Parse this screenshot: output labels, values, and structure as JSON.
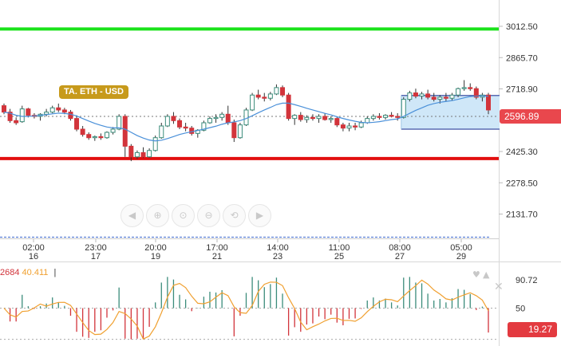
{
  "colors": {
    "bull": "#3b8c7b",
    "bear": "#d2343b",
    "support": "#e20f0f",
    "resistance": "#1be21b",
    "ma": "#4a90d9",
    "range_fill": "#cfe7f8",
    "range_border": "#5b6bb3",
    "label_bg": "#c79a1b",
    "price_tag_bg": "#e9474d",
    "osc_line": "#f0a030",
    "osc_tag_bg": "#e33a40"
  },
  "symbol_label": "TA.  ETH - USD",
  "price_axis": {
    "ticks": [
      "3012.50",
      "2865.70",
      "2718.90",
      "2425.30",
      "2278.50",
      "2131.70"
    ],
    "current_price": "2596.89"
  },
  "time_axis": [
    {
      "time": "02:00",
      "day": "16"
    },
    {
      "time": "23:00",
      "day": "17"
    },
    {
      "time": "20:00",
      "day": "19"
    },
    {
      "time": "17:00",
      "day": "21"
    },
    {
      "time": "14:00",
      "day": "23"
    },
    {
      "time": "11:00",
      "day": "25"
    },
    {
      "time": "08:00",
      "day": "27"
    },
    {
      "time": "05:00",
      "day": "29"
    }
  ],
  "nav_buttons": [
    {
      "name": "scroll-left",
      "icon": "triangle-left-icon",
      "glyph": "◀"
    },
    {
      "name": "zoom-in",
      "icon": "zoom-in-icon",
      "glyph": "⊕"
    },
    {
      "name": "zoom-fit",
      "icon": "fit-icon",
      "glyph": "⊙"
    },
    {
      "name": "zoom-out",
      "icon": "zoom-out-icon",
      "glyph": "⊖"
    },
    {
      "name": "zoom-reset",
      "icon": "reset-icon",
      "glyph": "⟲"
    },
    {
      "name": "scroll-right",
      "icon": "triangle-right-icon",
      "glyph": "▶"
    }
  ],
  "oscillator": {
    "legend_value_1": "2684",
    "legend_value_2": "40.411",
    "legend_sep": "|",
    "axis_ticks": [
      "90.72",
      "50"
    ],
    "current_value": "19.27"
  },
  "chart_data": {
    "type": "candlestick",
    "ylim": [
      2080,
      3080
    ],
    "support_level": 2392,
    "resistance_level": 3000,
    "candles": [
      [
        2640,
        2650,
        2600,
        2610
      ],
      [
        2610,
        2625,
        2560,
        2570
      ],
      [
        2570,
        2585,
        2550,
        2560
      ],
      [
        2565,
        2640,
        2560,
        2625
      ],
      [
        2625,
        2630,
        2585,
        2595
      ],
      [
        2595,
        2605,
        2580,
        2590
      ],
      [
        2590,
        2605,
        2570,
        2600
      ],
      [
        2600,
        2625,
        2590,
        2610
      ],
      [
        2610,
        2640,
        2605,
        2630
      ],
      [
        2630,
        2650,
        2610,
        2620
      ],
      [
        2620,
        2630,
        2600,
        2610
      ],
      [
        2610,
        2620,
        2570,
        2580
      ],
      [
        2580,
        2595,
        2520,
        2530
      ],
      [
        2530,
        2545,
        2495,
        2505
      ],
      [
        2505,
        2515,
        2480,
        2490
      ],
      [
        2490,
        2500,
        2475,
        2495
      ],
      [
        2495,
        2510,
        2480,
        2490
      ],
      [
        2490,
        2520,
        2485,
        2515
      ],
      [
        2515,
        2540,
        2505,
        2530
      ],
      [
        2530,
        2600,
        2525,
        2590
      ],
      [
        2590,
        2600,
        2400,
        2450
      ],
      [
        2450,
        2460,
        2380,
        2400
      ],
      [
        2400,
        2430,
        2390,
        2420
      ],
      [
        2420,
        2445,
        2395,
        2400
      ],
      [
        2400,
        2440,
        2395,
        2430
      ],
      [
        2430,
        2500,
        2425,
        2490
      ],
      [
        2490,
        2560,
        2485,
        2545
      ],
      [
        2545,
        2600,
        2540,
        2590
      ],
      [
        2590,
        2610,
        2555,
        2570
      ],
      [
        2570,
        2580,
        2530,
        2540
      ],
      [
        2540,
        2560,
        2520,
        2535
      ],
      [
        2535,
        2545,
        2500,
        2510
      ],
      [
        2510,
        2530,
        2490,
        2525
      ],
      [
        2525,
        2570,
        2520,
        2560
      ],
      [
        2560,
        2590,
        2555,
        2580
      ],
      [
        2580,
        2600,
        2560,
        2585
      ],
      [
        2585,
        2610,
        2570,
        2600
      ],
      [
        2600,
        2640,
        2550,
        2560
      ],
      [
        2560,
        2575,
        2470,
        2490
      ],
      [
        2490,
        2560,
        2485,
        2550
      ],
      [
        2550,
        2630,
        2545,
        2620
      ],
      [
        2620,
        2700,
        2615,
        2690
      ],
      [
        2690,
        2715,
        2670,
        2680
      ],
      [
        2680,
        2700,
        2660,
        2675
      ],
      [
        2675,
        2705,
        2665,
        2695
      ],
      [
        2695,
        2740,
        2690,
        2725
      ],
      [
        2725,
        2735,
        2680,
        2690
      ],
      [
        2690,
        2700,
        2570,
        2580
      ],
      [
        2580,
        2600,
        2550,
        2595
      ],
      [
        2595,
        2610,
        2565,
        2575
      ],
      [
        2575,
        2595,
        2560,
        2585
      ],
      [
        2585,
        2600,
        2570,
        2580
      ],
      [
        2580,
        2600,
        2560,
        2590
      ],
      [
        2590,
        2605,
        2570,
        2575
      ],
      [
        2575,
        2590,
        2560,
        2580
      ],
      [
        2580,
        2590,
        2540,
        2550
      ],
      [
        2550,
        2560,
        2520,
        2535
      ],
      [
        2535,
        2560,
        2520,
        2545
      ],
      [
        2545,
        2560,
        2525,
        2540
      ],
      [
        2540,
        2570,
        2535,
        2560
      ],
      [
        2560,
        2590,
        2555,
        2580
      ],
      [
        2580,
        2600,
        2570,
        2590
      ],
      [
        2590,
        2605,
        2575,
        2585
      ],
      [
        2585,
        2600,
        2575,
        2595
      ],
      [
        2595,
        2610,
        2585,
        2590
      ],
      [
        2590,
        2605,
        2570,
        2585
      ],
      [
        2585,
        2680,
        2580,
        2670
      ],
      [
        2670,
        2710,
        2660,
        2700
      ],
      [
        2700,
        2720,
        2675,
        2685
      ],
      [
        2685,
        2705,
        2670,
        2695
      ],
      [
        2695,
        2715,
        2670,
        2680
      ],
      [
        2680,
        2700,
        2660,
        2670
      ],
      [
        2670,
        2690,
        2650,
        2680
      ],
      [
        2680,
        2700,
        2660,
        2675
      ],
      [
        2675,
        2700,
        2665,
        2690
      ],
      [
        2690,
        2725,
        2680,
        2720
      ],
      [
        2720,
        2760,
        2710,
        2725
      ],
      [
        2725,
        2745,
        2710,
        2720
      ],
      [
        2720,
        2730,
        2670,
        2680
      ],
      [
        2680,
        2700,
        2660,
        2690
      ],
      [
        2690,
        2700,
        2600,
        2620
      ]
    ],
    "ma": [
      2610,
      2605,
      2595,
      2590,
      2590,
      2592,
      2595,
      2598,
      2602,
      2605,
      2604,
      2600,
      2592,
      2580,
      2568,
      2557,
      2548,
      2540,
      2536,
      2536,
      2530,
      2515,
      2500,
      2488,
      2479,
      2475,
      2478,
      2486,
      2495,
      2505,
      2512,
      2518,
      2524,
      2530,
      2537,
      2544,
      2553,
      2560,
      2564,
      2570,
      2580,
      2593,
      2607,
      2620,
      2632,
      2645,
      2652,
      2652,
      2645,
      2637,
      2628,
      2620,
      2612,
      2604,
      2597,
      2588,
      2580,
      2573,
      2567,
      2562,
      2560,
      2562,
      2565,
      2570,
      2575,
      2578,
      2590,
      2604,
      2618,
      2630,
      2642,
      2650,
      2656,
      2660,
      2664,
      2670,
      2677,
      2683,
      2685,
      2686,
      2684
    ],
    "range_box": {
      "x_start_index": 66,
      "top": 2688,
      "bottom": 2530
    },
    "oscillator_lines": {
      "upper": 90.72,
      "mid": 50,
      "lower": 5
    }
  }
}
